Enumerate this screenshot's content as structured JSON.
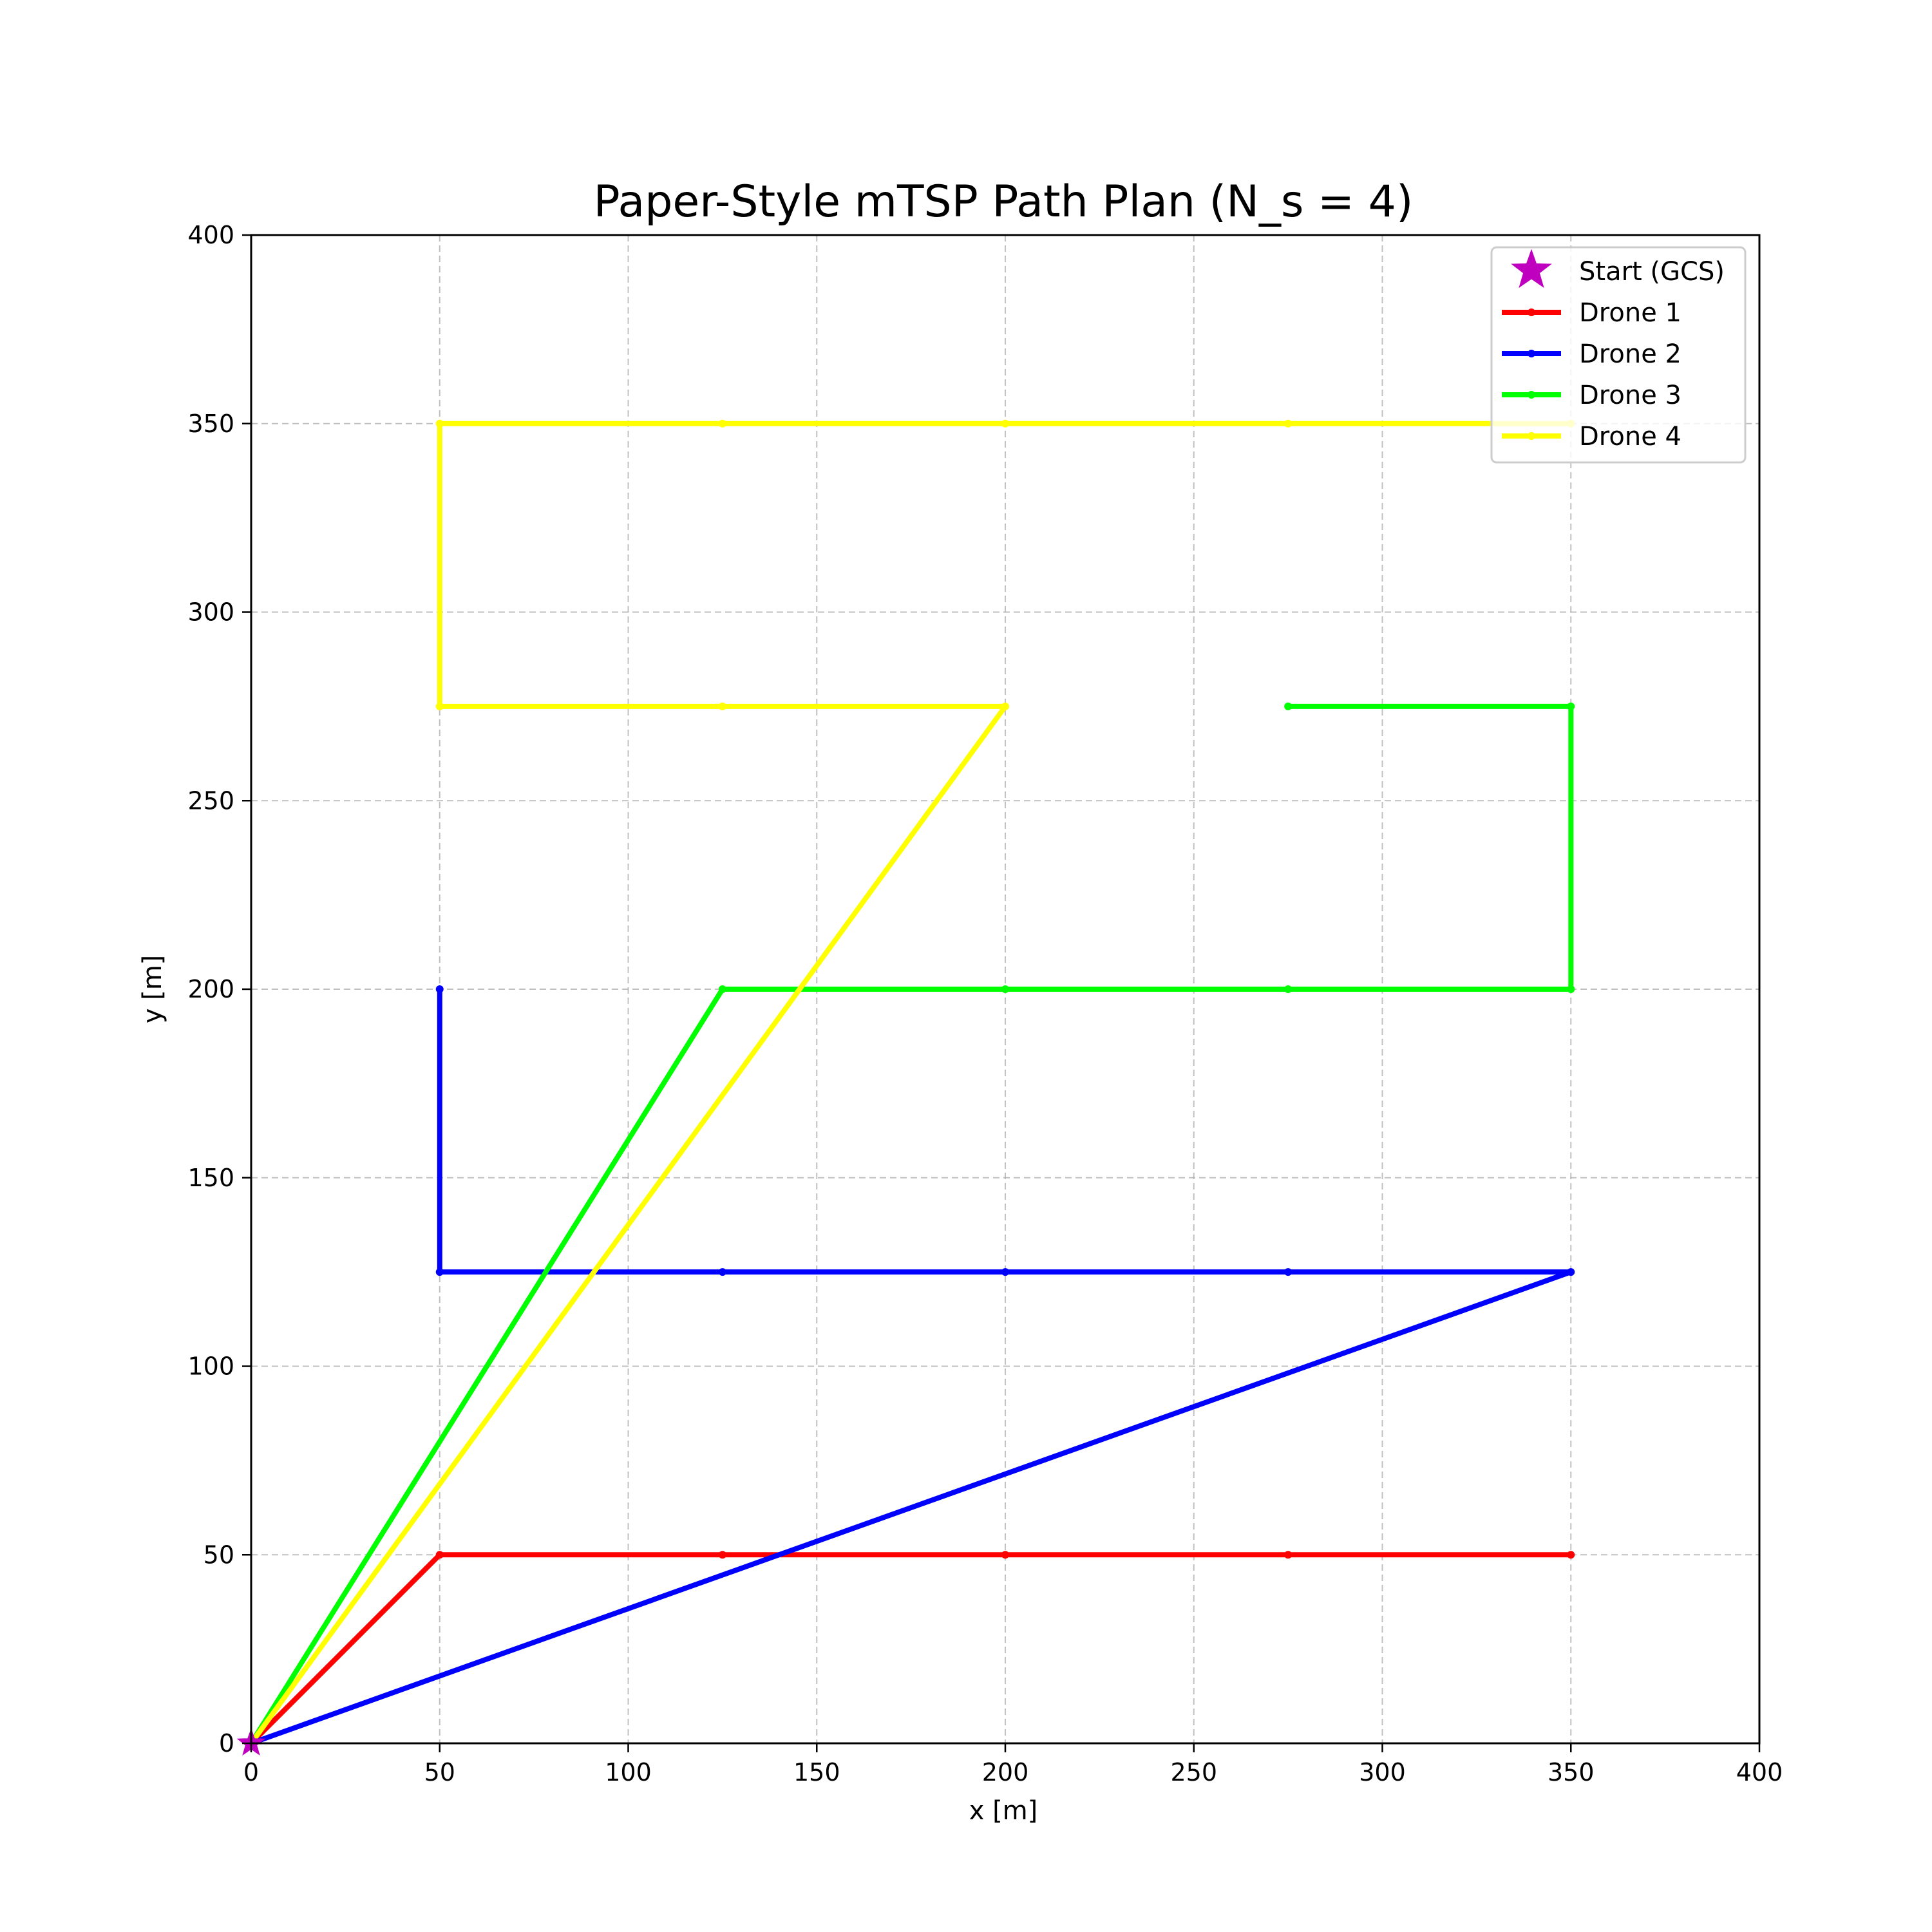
{
  "chart_data": {
    "type": "line",
    "title": "Paper-Style mTSP Path Plan (N_s = 4)",
    "xlabel": "x [m]",
    "ylabel": "y [m]",
    "xlim": [
      0,
      400
    ],
    "ylim": [
      0,
      400
    ],
    "xticks": [
      0,
      50,
      100,
      150,
      200,
      250,
      300,
      350,
      400
    ],
    "yticks": [
      0,
      50,
      100,
      150,
      200,
      250,
      300,
      350,
      400
    ],
    "grid": true,
    "legend_position": "top-right",
    "start": {
      "name": "Start (GCS)",
      "x": 0,
      "y": 0,
      "color": "#bf00bf",
      "marker": "star"
    },
    "series": [
      {
        "name": "Drone 1",
        "color": "#ff0000",
        "points": [
          [
            0,
            0
          ],
          [
            50,
            50
          ],
          [
            125,
            50
          ],
          [
            200,
            50
          ],
          [
            275,
            50
          ],
          [
            350,
            50
          ]
        ]
      },
      {
        "name": "Drone 2",
        "color": "#0000ff",
        "points": [
          [
            0,
            0
          ],
          [
            350,
            125
          ],
          [
            275,
            125
          ],
          [
            200,
            125
          ],
          [
            125,
            125
          ],
          [
            50,
            125
          ],
          [
            50,
            200
          ]
        ]
      },
      {
        "name": "Drone 3",
        "color": "#00ff00",
        "points": [
          [
            0,
            0
          ],
          [
            125,
            200
          ],
          [
            200,
            200
          ],
          [
            275,
            200
          ],
          [
            350,
            200
          ],
          [
            350,
            275
          ],
          [
            275,
            275
          ]
        ]
      },
      {
        "name": "Drone 4",
        "color": "#ffff00",
        "points": [
          [
            0,
            0
          ],
          [
            200,
            275
          ],
          [
            125,
            275
          ],
          [
            50,
            275
          ],
          [
            50,
            350
          ],
          [
            125,
            350
          ],
          [
            200,
            350
          ],
          [
            275,
            350
          ],
          [
            350,
            350
          ]
        ]
      }
    ]
  }
}
